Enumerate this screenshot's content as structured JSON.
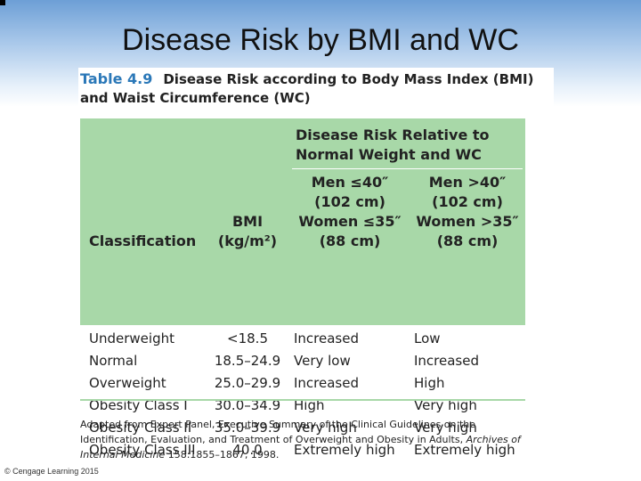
{
  "slide": {
    "title": "Disease Risk by BMI and WC",
    "footer": "© Cengage Learning 2015"
  },
  "table": {
    "caption_number": "Table 4.9",
    "caption_text": "Disease Risk according to Body Mass Index (BMI) and Waist Circumference (WC)",
    "group_header": "Disease Risk Relative to Normal Weight and WC",
    "columns": {
      "classification": "Classification",
      "bmi_line1": "BMI",
      "bmi_line2": "(kg/m²)",
      "men_line1": "Men ≤40″",
      "men_line2": "(102 cm)",
      "women_line1": "Women ≤35″",
      "women_line2": "(88 cm)",
      "men2_line1": "Men >40″",
      "men2_line2": "(102 cm)",
      "women2_line1": "Women >35″",
      "women2_line2": "(88 cm)"
    },
    "rows": [
      {
        "classification": "Underweight",
        "bmi": "<18.5",
        "risk_low_wc": "Increased",
        "risk_high_wc": "Low"
      },
      {
        "classification": "Normal",
        "bmi": "18.5–24.9",
        "risk_low_wc": "Very low",
        "risk_high_wc": "Increased"
      },
      {
        "classification": "Overweight",
        "bmi": "25.0–29.9",
        "risk_low_wc": "Increased",
        "risk_high_wc": "High"
      },
      {
        "classification": "Obesity Class I",
        "bmi": "30.0–34.9",
        "risk_low_wc": "High",
        "risk_high_wc": "Very high"
      },
      {
        "classification": "Obesity Class II",
        "bmi": "35.0–39.9",
        "risk_low_wc": "Very high",
        "risk_high_wc": "Very high"
      },
      {
        "classification": "Obesity Class III",
        "bmi": "40.0",
        "risk_low_wc": "Extremely high",
        "risk_high_wc": "Extremely high"
      }
    ],
    "source_part1": "Adapted from Expert Panel, Executive Summary of the Clinical Guidelines on the Identification, Evaluation, and Treatment of Overweight and Obesity in Adults,",
    "source_journal": "Archives of Internal Medicine",
    "source_part2": "158:1855–1867, 1998."
  }
}
